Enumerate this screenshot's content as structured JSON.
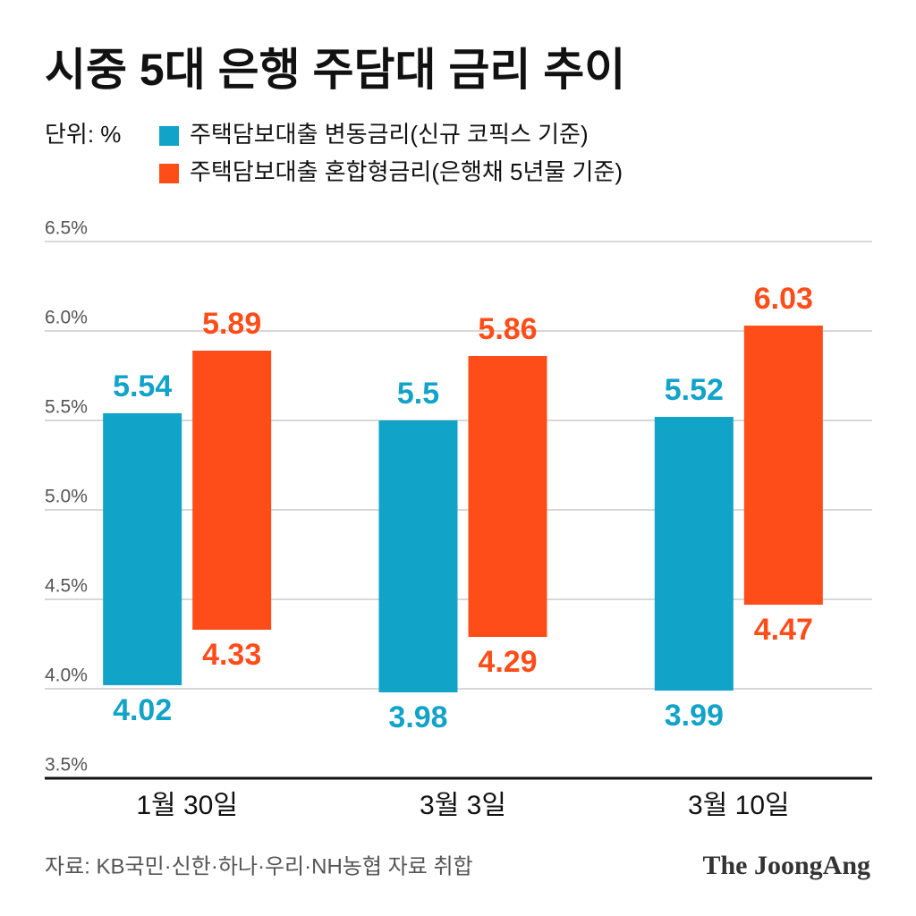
{
  "chart_data": {
    "type": "range_bar",
    "title": "시중 5대 은행 주담대 금리 추이",
    "unit_label": "단위: %",
    "categories": [
      "1월 30일",
      "3월 3일",
      "3월 10일"
    ],
    "series": [
      {
        "name": "주택담보대출 변동금리(신규 코픽스 기준)",
        "color": "#12a3c8",
        "low": [
          4.02,
          3.98,
          3.99
        ],
        "high": [
          5.54,
          5.5,
          5.52
        ]
      },
      {
        "name": "주택담보대출 혼합형금리(은행채 5년물 기준)",
        "color": "#ff4d1a",
        "low": [
          4.33,
          4.29,
          4.47
        ],
        "high": [
          5.89,
          5.86,
          6.03
        ]
      }
    ],
    "ylim": [
      3.5,
      6.5
    ],
    "yticks": [
      {
        "value": 3.5,
        "label": "3.5%"
      },
      {
        "value": 4.0,
        "label": "4.0%"
      },
      {
        "value": 4.5,
        "label": "4.5%"
      },
      {
        "value": 5.0,
        "label": "5.0%"
      },
      {
        "value": 5.5,
        "label": "5.5%"
      },
      {
        "value": 6.0,
        "label": "6.0%"
      },
      {
        "value": 6.5,
        "label": "6.5%"
      }
    ],
    "grid": true,
    "source": "자료: KB국민·신한·하나·우리·NH농협 자료 취합",
    "brand": "The JoongAng"
  }
}
